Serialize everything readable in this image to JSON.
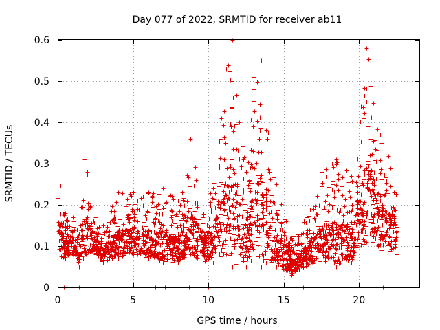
{
  "chart_data": {
    "type": "scatter",
    "title": "Day 077 of 2022, SRMTID for receiver ab11",
    "xlabel": "GPS time / hours",
    "ylabel": "SRMTID / TECUs",
    "xlim": [
      0,
      24
    ],
    "ylim": [
      0,
      0.6
    ],
    "xticks": [
      0,
      5,
      10,
      15,
      20
    ],
    "yticks": [
      0,
      0.1,
      0.2,
      0.3,
      0.4,
      0.5,
      0.6
    ],
    "xtick_labels": [
      "0",
      "5",
      "10",
      "15",
      "20"
    ],
    "ytick_labels": [
      "0",
      "0.1",
      "0.2",
      "0.3",
      "0.4",
      "0.5",
      "0.6"
    ],
    "grid": true,
    "marker": "+",
    "color": "#e00000",
    "zero_markers_x": [
      0.4,
      1.4,
      6.5,
      7.1,
      8.7,
      10.0,
      10.1,
      10.2,
      16.3,
      21.6
    ],
    "series": [
      {
        "name": "ab11",
        "envelope": [
          {
            "x": 0.0,
            "low": 0.06,
            "high": 0.38
          },
          {
            "x": 0.5,
            "low": 0.07,
            "high": 0.18
          },
          {
            "x": 1.0,
            "low": 0.08,
            "high": 0.17
          },
          {
            "x": 1.4,
            "low": 0.05,
            "high": 0.13
          },
          {
            "x": 1.8,
            "low": 0.07,
            "high": 0.31
          },
          {
            "x": 2.5,
            "low": 0.08,
            "high": 0.17
          },
          {
            "x": 3.0,
            "low": 0.06,
            "high": 0.15
          },
          {
            "x": 4.0,
            "low": 0.07,
            "high": 0.23
          },
          {
            "x": 5.0,
            "low": 0.08,
            "high": 0.23
          },
          {
            "x": 6.0,
            "low": 0.07,
            "high": 0.23
          },
          {
            "x": 7.0,
            "low": 0.06,
            "high": 0.24
          },
          {
            "x": 8.0,
            "low": 0.06,
            "high": 0.21
          },
          {
            "x": 8.8,
            "low": 0.08,
            "high": 0.36
          },
          {
            "x": 9.5,
            "low": 0.06,
            "high": 0.22
          },
          {
            "x": 10.3,
            "low": 0.06,
            "high": 0.24
          },
          {
            "x": 11.2,
            "low": 0.08,
            "high": 0.53
          },
          {
            "x": 11.6,
            "low": 0.05,
            "high": 0.6
          },
          {
            "x": 12.5,
            "low": 0.05,
            "high": 0.28
          },
          {
            "x": 13.0,
            "low": 0.05,
            "high": 0.51
          },
          {
            "x": 13.5,
            "low": 0.05,
            "high": 0.55
          },
          {
            "x": 14.5,
            "low": 0.05,
            "high": 0.25
          },
          {
            "x": 15.5,
            "low": 0.03,
            "high": 0.12
          },
          {
            "x": 16.5,
            "low": 0.05,
            "high": 0.17
          },
          {
            "x": 17.5,
            "low": 0.06,
            "high": 0.28
          },
          {
            "x": 18.5,
            "low": 0.05,
            "high": 0.31
          },
          {
            "x": 19.5,
            "low": 0.06,
            "high": 0.27
          },
          {
            "x": 20.5,
            "low": 0.11,
            "high": 0.58
          },
          {
            "x": 21.5,
            "low": 0.09,
            "high": 0.35
          },
          {
            "x": 22.5,
            "low": 0.08,
            "high": 0.29
          }
        ]
      }
    ]
  }
}
